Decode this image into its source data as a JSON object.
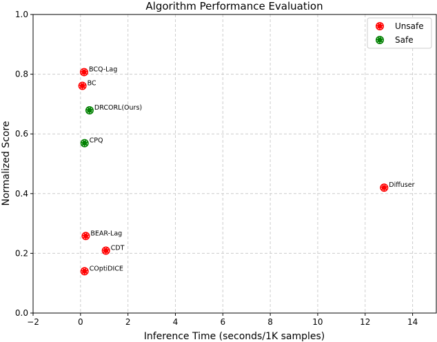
{
  "chart_data": {
    "type": "scatter",
    "title": "Algorithm Performance Evaluation",
    "xlabel": "Inference Time (seconds/1K samples)",
    "ylabel": "Normalized Score",
    "xlim": [
      -2,
      15
    ],
    "ylim": [
      0,
      1.0
    ],
    "xticks": [
      -2,
      0,
      2,
      4,
      6,
      8,
      10,
      12,
      14
    ],
    "yticks": [
      "0.0",
      "0.2",
      "0.4",
      "0.6",
      "0.8",
      "1.0"
    ],
    "grid": true,
    "legend_position": "top-right",
    "legend": [
      {
        "name": "Unsafe",
        "color": "#ff0000"
      },
      {
        "name": "Safe",
        "color": "#008000"
      }
    ],
    "points": [
      {
        "label": "BCQ-Lag",
        "x": 0.15,
        "y": 0.807,
        "class": "Unsafe"
      },
      {
        "label": "BC",
        "x": 0.08,
        "y": 0.761,
        "class": "Unsafe"
      },
      {
        "label": "DRCORL(Ours)",
        "x": 0.38,
        "y": 0.679,
        "class": "Safe"
      },
      {
        "label": "CPQ",
        "x": 0.17,
        "y": 0.569,
        "class": "Safe"
      },
      {
        "label": "Diffuser",
        "x": 12.8,
        "y": 0.42,
        "class": "Unsafe"
      },
      {
        "label": "BEAR-Lag",
        "x": 0.22,
        "y": 0.258,
        "class": "Unsafe"
      },
      {
        "label": "CDT",
        "x": 1.07,
        "y": 0.209,
        "class": "Unsafe"
      },
      {
        "label": "COptiDICE",
        "x": 0.17,
        "y": 0.14,
        "class": "Unsafe"
      }
    ]
  }
}
